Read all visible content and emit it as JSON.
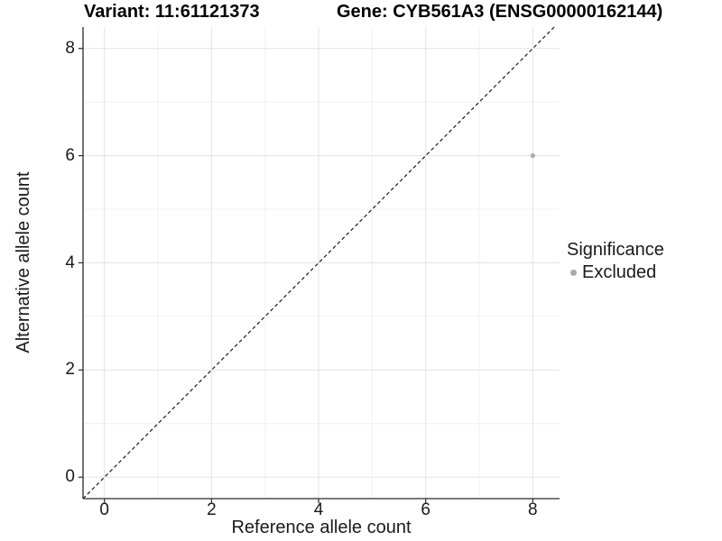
{
  "chart_data": {
    "type": "scatter",
    "title_left": "Variant: 11:61121373",
    "title_right": "Gene: CYB561A3 (ENSG00000162144)",
    "xlabel": "Reference allele count",
    "ylabel": "Alternative allele count",
    "xlim": [
      -0.4,
      8.5
    ],
    "ylim": [
      -0.4,
      8.4
    ],
    "x_ticks": [
      0,
      2,
      4,
      6,
      8
    ],
    "y_ticks": [
      0,
      2,
      4,
      6,
      8
    ],
    "x_minor_ticks": [
      1,
      3,
      5,
      7
    ],
    "y_minor_ticks": [
      1,
      3,
      5,
      7
    ],
    "grid": true,
    "identity_line": {
      "show": true,
      "style": "dashed",
      "equation": "y = x",
      "color": "#1a1a1a"
    },
    "series": [
      {
        "name": "Excluded",
        "color": "#aaaaaa",
        "points": [
          {
            "x": 8,
            "y": 6
          }
        ]
      }
    ],
    "legend": {
      "position": "right",
      "title": "Significance",
      "entries": [
        {
          "label": "Excluded",
          "color": "#aaaaaa"
        }
      ]
    },
    "colors": {
      "background": "#ffffff",
      "grid_major": "#e3e3e3",
      "grid_minor": "#f1f1f1",
      "axis_line": "#2a2a2a",
      "tick_mark": "#2a2a2a",
      "text": "#1a1a1a"
    }
  }
}
